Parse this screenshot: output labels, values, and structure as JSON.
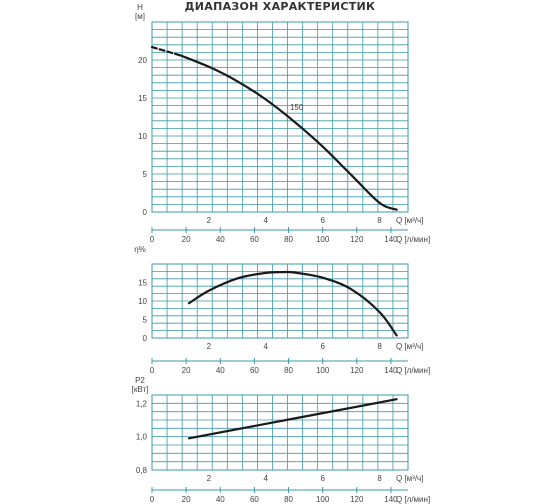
{
  "title": "ДИАПАЗОН ХАРАКТЕРИСТИК",
  "chart_data": [
    {
      "type": "line",
      "ylabel": "H",
      "yunit": "[м]",
      "xlabel": "Q [м³/ч]",
      "x2label": "Q [л/мин]",
      "xlim": [
        0,
        9
      ],
      "ylim": [
        0,
        25
      ],
      "xticks": [
        2,
        4,
        6,
        8
      ],
      "yticks": [
        0,
        5,
        10,
        15,
        20
      ],
      "x2ticks": [
        0,
        20,
        40,
        60,
        80,
        100,
        120,
        140
      ],
      "annotation": "150",
      "series": [
        {
          "x": [
            0.0,
            1.0,
            2.0,
            3.0,
            4.0,
            5.0,
            6.0,
            7.0,
            8.0,
            8.6
          ],
          "y": [
            21.7,
            20.6,
            19.1,
            17.2,
            14.8,
            11.9,
            8.6,
            4.9,
            1.2,
            0.3
          ]
        }
      ],
      "dashed_until_x": 1.0
    },
    {
      "type": "line",
      "ylabel": "η%",
      "xlabel": "Q [м³/ч]",
      "x2label": "Q [л/мин]",
      "xlim": [
        0,
        9
      ],
      "ylim": [
        0,
        20
      ],
      "xticks": [
        2,
        4,
        6,
        8
      ],
      "yticks": [
        0,
        5,
        10,
        15
      ],
      "x2ticks": [
        0,
        20,
        40,
        60,
        80,
        100,
        120,
        140
      ],
      "series": [
        {
          "x": [
            1.3,
            2.0,
            3.0,
            4.0,
            4.6,
            5.0,
            6.0,
            7.0,
            8.0,
            8.6
          ],
          "y": [
            9.4,
            12.8,
            16.1,
            17.6,
            17.8,
            17.7,
            16.3,
            13.2,
            7.0,
            0.7
          ]
        }
      ]
    },
    {
      "type": "line",
      "ylabel": "P2",
      "yunit": "[кВт]",
      "xlabel": "Q [м³/ч]",
      "x2label": "Q [л/мин]",
      "xlim": [
        0,
        9
      ],
      "ylim": [
        0.8,
        1.25
      ],
      "xticks": [
        2,
        4,
        6,
        8
      ],
      "yticks": [
        0.8,
        1.0,
        1.2
      ],
      "ytick_labels": [
        "0,8",
        "1,0",
        "1,2"
      ],
      "x2ticks": [
        0,
        20,
        40,
        60,
        80,
        100,
        120,
        140
      ],
      "series": [
        {
          "x": [
            1.3,
            8.6
          ],
          "y": [
            0.99,
            1.225
          ]
        }
      ]
    }
  ]
}
